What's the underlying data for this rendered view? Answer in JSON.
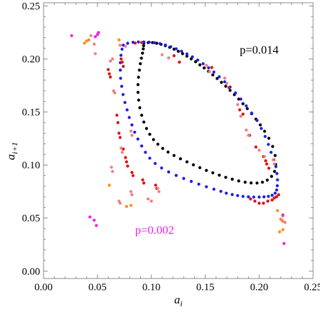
{
  "chart_data": {
    "type": "scatter",
    "xlabel": {
      "main": "a",
      "sub": "i"
    },
    "ylabel": {
      "main": "a",
      "sub": "i+1"
    },
    "xlim": [
      0.0,
      0.25
    ],
    "ylim": [
      -0.007,
      0.253
    ],
    "grid": false,
    "x_ticks": [
      {
        "value": 0.0,
        "label": "0.00"
      },
      {
        "value": 0.05,
        "label": "0.05"
      },
      {
        "value": 0.1,
        "label": "0.10"
      },
      {
        "value": 0.15,
        "label": "0.15"
      },
      {
        "value": 0.2,
        "label": "0.20"
      },
      {
        "value": 0.25,
        "label": "0.25"
      }
    ],
    "y_ticks": [
      {
        "value": 0.0,
        "label": "0.00"
      },
      {
        "value": 0.05,
        "label": "0.05"
      },
      {
        "value": 0.1,
        "label": "0.10"
      },
      {
        "value": 0.15,
        "label": "0.15"
      },
      {
        "value": 0.2,
        "label": "0.20"
      },
      {
        "value": 0.25,
        "label": "0.25"
      }
    ],
    "annotations": [
      {
        "text": "p=0.014",
        "x": 0.2,
        "y": 0.205,
        "color": "#000000"
      },
      {
        "text": "p=0.002",
        "x": 0.103,
        "y": 0.035,
        "color": "#ee22ee"
      }
    ],
    "series": [
      {
        "color": "#000000",
        "points": [
          [
            0.093,
            0.215
          ],
          [
            0.097,
            0.2155
          ],
          [
            0.101,
            0.2155
          ],
          [
            0.105,
            0.2148
          ],
          [
            0.109,
            0.2138
          ],
          [
            0.113,
            0.2125
          ],
          [
            0.117,
            0.211
          ],
          [
            0.121,
            0.2092
          ],
          [
            0.125,
            0.2072
          ],
          [
            0.129,
            0.205
          ],
          [
            0.133,
            0.2027
          ],
          [
            0.137,
            0.2001
          ],
          [
            0.141,
            0.1974
          ],
          [
            0.145,
            0.1945
          ],
          [
            0.149,
            0.1915
          ],
          [
            0.153,
            0.1883
          ],
          [
            0.157,
            0.185
          ],
          [
            0.161,
            0.1816
          ],
          [
            0.165,
            0.178
          ],
          [
            0.169,
            0.1743
          ],
          [
            0.173,
            0.1704
          ],
          [
            0.177,
            0.1664
          ],
          [
            0.181,
            0.1622
          ],
          [
            0.185,
            0.1578
          ],
          [
            0.189,
            0.1532
          ],
          [
            0.193,
            0.1484
          ],
          [
            0.197,
            0.1433
          ],
          [
            0.201,
            0.1378
          ],
          [
            0.205,
            0.1318
          ],
          [
            0.209,
            0.1252
          ],
          [
            0.2125,
            0.1175
          ],
          [
            0.2148,
            0.109
          ],
          [
            0.2153,
            0.1005
          ],
          [
            0.2142,
            0.094
          ],
          [
            0.2115,
            0.0893
          ],
          [
            0.2075,
            0.0858
          ],
          [
            0.203,
            0.0838
          ],
          [
            0.198,
            0.083
          ],
          [
            0.1925,
            0.0831
          ],
          [
            0.187,
            0.0838
          ],
          [
            0.181,
            0.085
          ],
          [
            0.175,
            0.0866
          ],
          [
            0.169,
            0.0884
          ],
          [
            0.163,
            0.0905
          ],
          [
            0.157,
            0.0927
          ],
          [
            0.151,
            0.095
          ],
          [
            0.145,
            0.0975
          ],
          [
            0.139,
            0.1002
          ],
          [
            0.133,
            0.103
          ],
          [
            0.127,
            0.1059
          ],
          [
            0.121,
            0.109
          ],
          [
            0.1155,
            0.1122
          ],
          [
            0.1105,
            0.1157
          ],
          [
            0.106,
            0.1196
          ],
          [
            0.102,
            0.124
          ],
          [
            0.0985,
            0.129
          ],
          [
            0.0955,
            0.1345
          ],
          [
            0.093,
            0.1405
          ],
          [
            0.091,
            0.147
          ],
          [
            0.0893,
            0.154
          ],
          [
            0.0882,
            0.1612
          ],
          [
            0.0876,
            0.1685
          ],
          [
            0.0876,
            0.1758
          ],
          [
            0.0881,
            0.1828
          ],
          [
            0.0889,
            0.1895
          ],
          [
            0.0898,
            0.1955
          ],
          [
            0.0908,
            0.2008
          ],
          [
            0.0918,
            0.2055
          ],
          [
            0.0925,
            0.2095
          ],
          [
            0.0928,
            0.2125
          ]
        ]
      },
      {
        "color": "#1f1fe6",
        "points": [
          [
            0.074,
            0.213
          ],
          [
            0.078,
            0.2148
          ],
          [
            0.083,
            0.2157
          ],
          [
            0.088,
            0.216
          ],
          [
            0.093,
            0.216
          ],
          [
            0.098,
            0.2158
          ],
          [
            0.103,
            0.2153
          ],
          [
            0.108,
            0.2145
          ],
          [
            0.113,
            0.2132
          ],
          [
            0.118,
            0.2115
          ],
          [
            0.123,
            0.2096
          ],
          [
            0.128,
            0.2073
          ],
          [
            0.133,
            0.2048
          ],
          [
            0.138,
            0.202
          ],
          [
            0.143,
            0.199
          ],
          [
            0.148,
            0.1955
          ],
          [
            0.153,
            0.1917
          ],
          [
            0.158,
            0.1877
          ],
          [
            0.163,
            0.1832
          ],
          [
            0.168,
            0.1785
          ],
          [
            0.173,
            0.1735
          ],
          [
            0.178,
            0.168
          ],
          [
            0.183,
            0.1622
          ],
          [
            0.188,
            0.1558
          ],
          [
            0.193,
            0.149
          ],
          [
            0.198,
            0.142
          ],
          [
            0.202,
            0.1345
          ],
          [
            0.2055,
            0.127
          ],
          [
            0.2085,
            0.1195
          ],
          [
            0.211,
            0.112
          ],
          [
            0.2135,
            0.105
          ],
          [
            0.2155,
            0.0985
          ],
          [
            0.2165,
            0.092
          ],
          [
            0.217,
            0.086
          ],
          [
            0.2168,
            0.0805
          ],
          [
            0.2162,
            0.0765
          ],
          [
            0.2148,
            0.0735
          ],
          [
            0.212,
            0.0715
          ],
          [
            0.2085,
            0.0705
          ],
          [
            0.2045,
            0.07
          ],
          [
            0.2,
            0.0698
          ],
          [
            0.195,
            0.0698
          ],
          [
            0.19,
            0.07
          ],
          [
            0.185,
            0.0704
          ],
          [
            0.18,
            0.0712
          ],
          [
            0.175,
            0.0722
          ],
          [
            0.1695,
            0.0735
          ],
          [
            0.1645,
            0.0752
          ],
          [
            0.158,
            0.0772
          ],
          [
            0.151,
            0.0795
          ],
          [
            0.144,
            0.082
          ],
          [
            0.137,
            0.0846
          ],
          [
            0.13,
            0.0873
          ],
          [
            0.123,
            0.0902
          ],
          [
            0.116,
            0.0935
          ],
          [
            0.1095,
            0.0972
          ],
          [
            0.1035,
            0.1015
          ],
          [
            0.0985,
            0.1065
          ],
          [
            0.0945,
            0.112
          ],
          [
            0.091,
            0.118
          ],
          [
            0.0875,
            0.1245
          ],
          [
            0.0845,
            0.131
          ],
          [
            0.082,
            0.1378
          ],
          [
            0.0795,
            0.1448
          ],
          [
            0.0775,
            0.152
          ],
          [
            0.0755,
            0.159
          ],
          [
            0.0738,
            0.1665
          ],
          [
            0.0725,
            0.1742
          ],
          [
            0.0715,
            0.1818
          ],
          [
            0.0712,
            0.1895
          ],
          [
            0.0712,
            0.1965
          ],
          [
            0.0718,
            0.2035
          ],
          [
            0.0728,
            0.2092
          ]
        ]
      },
      {
        "color": "#dd1111",
        "points": [
          [
            0.06,
            0.19
          ],
          [
            0.061,
            0.186
          ],
          [
            0.062,
            0.183
          ],
          [
            0.072,
            0.2
          ],
          [
            0.073,
            0.197
          ],
          [
            0.074,
            0.193
          ],
          [
            0.085,
            0.215
          ],
          [
            0.091,
            0.2155
          ],
          [
            0.068,
            0.147
          ],
          [
            0.069,
            0.14
          ],
          [
            0.07,
            0.13
          ],
          [
            0.071,
            0.126
          ],
          [
            0.074,
            0.115
          ],
          [
            0.076,
            0.107
          ],
          [
            0.077,
            0.103
          ],
          [
            0.078,
            0.099
          ],
          [
            0.082,
            0.093
          ],
          [
            0.083,
            0.09
          ],
          [
            0.092,
            0.086
          ],
          [
            0.093,
            0.083
          ],
          [
            0.104,
            0.081
          ],
          [
            0.105,
            0.078
          ],
          [
            0.121,
            0.203
          ],
          [
            0.126,
            0.197
          ],
          [
            0.156,
            0.192
          ],
          [
            0.172,
            0.173
          ],
          [
            0.182,
            0.152
          ],
          [
            0.185,
            0.148
          ],
          [
            0.191,
            0.128
          ],
          [
            0.197,
            0.117
          ],
          [
            0.204,
            0.108
          ],
          [
            0.206,
            0.104
          ],
          [
            0.207,
            0.101
          ],
          [
            0.209,
            0.097
          ],
          [
            0.192,
            0.068
          ],
          [
            0.196,
            0.066
          ],
          [
            0.2,
            0.064
          ],
          [
            0.204,
            0.064
          ],
          [
            0.208,
            0.066
          ],
          [
            0.212,
            0.067
          ],
          [
            0.214,
            0.069
          ],
          [
            0.216,
            0.07
          ],
          [
            0.218,
            0.072
          ]
        ]
      },
      {
        "color": "#f08080",
        "points": [
          [
            0.044,
            0.222
          ],
          [
            0.047,
            0.214
          ],
          [
            0.048,
            0.205
          ],
          [
            0.062,
            0.198
          ],
          [
            0.064,
            0.2
          ],
          [
            0.071,
            0.213
          ],
          [
            0.076,
            0.212
          ],
          [
            0.065,
            0.17
          ],
          [
            0.066,
            0.168
          ],
          [
            0.072,
            0.116
          ],
          [
            0.073,
            0.112
          ],
          [
            0.081,
            0.132
          ],
          [
            0.082,
            0.128
          ],
          [
            0.063,
            0.098
          ],
          [
            0.064,
            0.094
          ],
          [
            0.07,
            0.066
          ],
          [
            0.071,
            0.064
          ],
          [
            0.081,
            0.075
          ],
          [
            0.082,
            0.072
          ],
          [
            0.097,
            0.068
          ],
          [
            0.1,
            0.066
          ],
          [
            0.106,
            0.078
          ],
          [
            0.107,
            0.075
          ],
          [
            0.11,
            0.204
          ],
          [
            0.116,
            0.201
          ],
          [
            0.151,
            0.194
          ],
          [
            0.154,
            0.188
          ],
          [
            0.168,
            0.182
          ],
          [
            0.17,
            0.177
          ],
          [
            0.18,
            0.157
          ],
          [
            0.183,
            0.146
          ],
          [
            0.188,
            0.133
          ],
          [
            0.19,
            0.128
          ],
          [
            0.2,
            0.114
          ],
          [
            0.205,
            0.108
          ],
          [
            0.213,
            0.105
          ],
          [
            0.214,
            0.101
          ],
          [
            0.22,
            0.049
          ],
          [
            0.222,
            0.047
          ],
          [
            0.224,
            0.046
          ],
          [
            0.222,
            0.052
          ]
        ]
      },
      {
        "color": "#ff8c1a",
        "points": [
          [
            0.038,
            0.215
          ],
          [
            0.04,
            0.217
          ],
          [
            0.042,
            0.218
          ],
          [
            0.07,
            0.218
          ],
          [
            0.061,
            0.081
          ],
          [
            0.077,
            0.061
          ],
          [
            0.081,
            0.062
          ],
          [
            0.219,
            0.037
          ],
          [
            0.221,
            0.048
          ],
          [
            0.222,
            0.039
          ],
          [
            0.217,
            0.057
          ]
        ]
      },
      {
        "color": "#ee22ee",
        "points": [
          [
            0.026,
            0.222
          ],
          [
            0.048,
            0.221
          ],
          [
            0.05,
            0.223
          ],
          [
            0.051,
            0.225
          ],
          [
            0.043,
            0.051
          ],
          [
            0.047,
            0.048
          ],
          [
            0.049,
            0.043
          ],
          [
            0.222,
            0.053
          ],
          [
            0.223,
            0.026
          ]
        ]
      }
    ]
  }
}
